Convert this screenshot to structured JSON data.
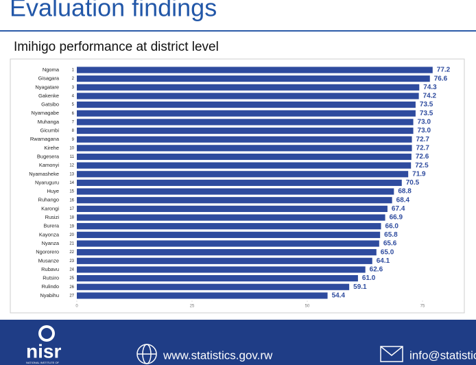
{
  "header": {
    "title": "Evaluation findings",
    "subtitle": "Imihigo performance at district level"
  },
  "chart_data": {
    "type": "barh",
    "categories": [
      "Ngoma",
      "Gisagara",
      "Nyagatare",
      "Gakenke",
      "Gatsibo",
      "Nyamagabe",
      "Muhanga",
      "Gicumbi",
      "Rwamagana",
      "Kirehe",
      "Bugesera",
      "Kamonyi",
      "Nyamasheke",
      "Nyaruguru",
      "Huye",
      "Ruhango",
      "Karongi",
      "Rusizi",
      "Burera",
      "Kayonza",
      "Nyanza",
      "Ngororero",
      "Musanze",
      "Rubavu",
      "Rutsiro",
      "Rulindo",
      "Nyabihu"
    ],
    "ranks": [
      1,
      2,
      3,
      4,
      5,
      6,
      7,
      8,
      9,
      10,
      11,
      12,
      13,
      14,
      15,
      16,
      17,
      18,
      19,
      20,
      21,
      22,
      23,
      24,
      25,
      26,
      27
    ],
    "values": [
      77.2,
      76.6,
      74.3,
      74.2,
      73.5,
      73.5,
      73.0,
      73.0,
      72.7,
      72.7,
      72.6,
      72.5,
      71.9,
      70.5,
      68.8,
      68.4,
      67.4,
      66.9,
      66.0,
      65.8,
      65.6,
      65.0,
      64.1,
      62.6,
      61.0,
      59.1,
      54.4
    ],
    "value_labels": [
      "77.2",
      "76.6",
      "74.3",
      "74.2",
      "73.5",
      "73.5",
      "73.0",
      "73.0",
      "72.7",
      "72.7",
      "72.6",
      "72.5",
      "71.9",
      "70.5",
      "68.8",
      "68.4",
      "67.4",
      "66.9",
      "66.0",
      "65.8",
      "65.6",
      "65.0",
      "64.1",
      "62.6",
      "61.0",
      "59.1",
      "54.4"
    ],
    "color": "#2e4b9e",
    "xlim": [
      0,
      80
    ],
    "xticks": [
      0,
      25,
      50,
      75
    ]
  },
  "footer": {
    "logo": "nisr",
    "logo_subtext": "NATIONAL INSTITUTE OF",
    "website": "www.statistics.gov.rw",
    "email": "info@statistics.gov.rw"
  }
}
